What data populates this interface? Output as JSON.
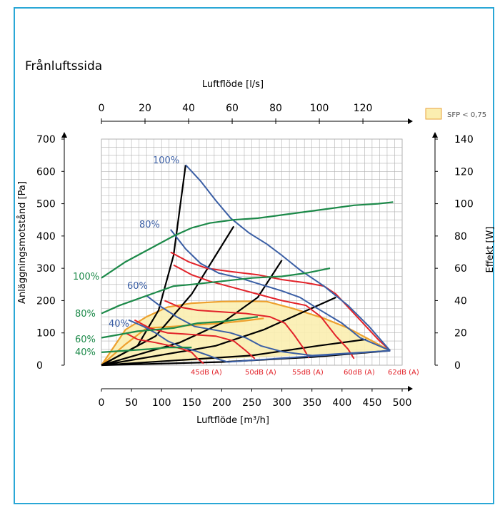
{
  "title": "Frånluftssida",
  "top_axis": {
    "label": "Luftflöde [l/s]",
    "ticks": [
      "0",
      "20",
      "40",
      "60",
      "80",
      "100",
      "120"
    ],
    "values": [
      0,
      20,
      40,
      60,
      80,
      100,
      120
    ],
    "max": 138
  },
  "bottom_axis": {
    "label": "Luftflöde [m³/h]",
    "ticks": [
      "0",
      "50",
      "100",
      "150",
      "200",
      "250",
      "300",
      "350",
      "400",
      "450",
      "500"
    ],
    "values": [
      0,
      50,
      100,
      150,
      200,
      250,
      300,
      350,
      400,
      450,
      500
    ]
  },
  "left_axis": {
    "label": "Anläggningsmotstånd [Pa]",
    "ticks": [
      "0",
      "100",
      "200",
      "300",
      "400",
      "500",
      "600",
      "700"
    ],
    "values": [
      0,
      100,
      200,
      300,
      400,
      500,
      600,
      700
    ]
  },
  "right_axis": {
    "label": "Effekt [W]",
    "ticks": [
      "0",
      "20",
      "40",
      "60",
      "80",
      "100",
      "120",
      "140"
    ],
    "values": [
      0,
      20,
      40,
      60,
      80,
      100,
      120,
      140
    ]
  },
  "legend": {
    "label": "SFP < 0,75",
    "color": "#fbeeb0",
    "border": "#e8a23a"
  },
  "colors": {
    "blue": "#3b5fa5",
    "green": "#1d8a4a",
    "red": "#e2232a",
    "black": "#000000",
    "orange": "#eda12f",
    "fill": "#fbeeb0",
    "frame": "#2aa7d6"
  },
  "labels": {
    "pressure": [
      "100%",
      "80%",
      "60%",
      "40%"
    ],
    "power": [
      "100%",
      "80%",
      "60%",
      "40%"
    ],
    "sound": [
      "45dB (A)",
      "50dB (A)",
      "55dB (A)",
      "60dB (A)",
      "62dB (A)"
    ]
  },
  "chart_data": {
    "type": "line",
    "x_unit": "m³/h",
    "xlim": [
      0,
      500
    ],
    "ylim": [
      0,
      700
    ],
    "y2lim": [
      0,
      140
    ],
    "pressure_curves": [
      {
        "name": "100%",
        "points": [
          [
            140,
            620
          ],
          [
            165,
            570
          ],
          [
            190,
            510
          ],
          [
            215,
            455
          ],
          [
            245,
            410
          ],
          [
            275,
            375
          ],
          [
            300,
            340
          ],
          [
            330,
            295
          ],
          [
            370,
            245
          ],
          [
            410,
            185
          ],
          [
            445,
            120
          ],
          [
            480,
            45
          ]
        ]
      },
      {
        "name": "80%",
        "points": [
          [
            115,
            420
          ],
          [
            140,
            360
          ],
          [
            165,
            315
          ],
          [
            195,
            285
          ],
          [
            230,
            270
          ],
          [
            265,
            250
          ],
          [
            300,
            230
          ],
          [
            330,
            210
          ],
          [
            360,
            175
          ],
          [
            400,
            130
          ],
          [
            430,
            85
          ],
          [
            480,
            45
          ]
        ]
      },
      {
        "name": "60%",
        "points": [
          [
            75,
            215
          ],
          [
            100,
            180
          ],
          [
            125,
            150
          ],
          [
            155,
            120
          ],
          [
            185,
            110
          ],
          [
            215,
            100
          ],
          [
            240,
            85
          ],
          [
            265,
            60
          ],
          [
            300,
            42
          ],
          [
            350,
            30
          ],
          [
            480,
            45
          ]
        ]
      },
      {
        "name": "40%",
        "points": [
          [
            45,
            140
          ],
          [
            70,
            120
          ],
          [
            90,
            100
          ],
          [
            110,
            75
          ],
          [
            135,
            55
          ],
          [
            155,
            45
          ],
          [
            175,
            32
          ],
          [
            195,
            18
          ],
          [
            210,
            10
          ],
          [
            480,
            45
          ]
        ]
      }
    ],
    "power_curves": [
      {
        "name": "100%",
        "points": [
          [
            0,
            54
          ],
          [
            40,
            64
          ],
          [
            80,
            72
          ],
          [
            120,
            80
          ],
          [
            150,
            85
          ],
          [
            180,
            88
          ],
          [
            220,
            90
          ],
          [
            260,
            91
          ],
          [
            300,
            93
          ],
          [
            340,
            95
          ],
          [
            380,
            97
          ],
          [
            420,
            99
          ],
          [
            460,
            100
          ],
          [
            485,
            101
          ]
        ]
      },
      {
        "name": "80%",
        "points": [
          [
            0,
            32
          ],
          [
            30,
            37
          ],
          [
            60,
            41
          ],
          [
            90,
            45
          ],
          [
            120,
            49
          ],
          [
            150,
            50
          ],
          [
            200,
            52
          ],
          [
            250,
            54
          ],
          [
            300,
            55
          ],
          [
            340,
            57
          ],
          [
            380,
            60
          ]
        ]
      },
      {
        "name": "60%",
        "points": [
          [
            0,
            17
          ],
          [
            30,
            19
          ],
          [
            60,
            21
          ],
          [
            90,
            22
          ],
          [
            120,
            23
          ],
          [
            160,
            26
          ],
          [
            200,
            27
          ],
          [
            240,
            29
          ],
          [
            260,
            30
          ]
        ]
      },
      {
        "name": "40%",
        "points": [
          [
            0,
            8
          ],
          [
            40,
            9
          ],
          [
            80,
            10
          ],
          [
            110,
            11
          ],
          [
            150,
            11
          ]
        ]
      }
    ],
    "sound_curves": [
      {
        "name": "62dB (A)",
        "points": [
          [
            115,
            350
          ],
          [
            145,
            320
          ],
          [
            175,
            300
          ],
          [
            215,
            290
          ],
          [
            260,
            280
          ],
          [
            300,
            265
          ],
          [
            340,
            255
          ],
          [
            370,
            245
          ],
          [
            390,
            220
          ],
          [
            410,
            180
          ],
          [
            435,
            130
          ],
          [
            460,
            80
          ],
          [
            480,
            45
          ]
        ]
      },
      {
        "name": "60dB (A)",
        "points": [
          [
            120,
            310
          ],
          [
            150,
            280
          ],
          [
            180,
            260
          ],
          [
            220,
            240
          ],
          [
            260,
            220
          ],
          [
            300,
            200
          ],
          [
            340,
            185
          ],
          [
            365,
            150
          ],
          [
            390,
            90
          ],
          [
            410,
            50
          ],
          [
            420,
            20
          ]
        ]
      },
      {
        "name": "55dB (A)",
        "points": [
          [
            105,
            200
          ],
          [
            130,
            180
          ],
          [
            160,
            170
          ],
          [
            200,
            165
          ],
          [
            240,
            160
          ],
          [
            280,
            150
          ],
          [
            305,
            130
          ],
          [
            320,
            95
          ],
          [
            335,
            55
          ],
          [
            345,
            22
          ]
        ]
      },
      {
        "name": "50dB (A)",
        "points": [
          [
            55,
            140
          ],
          [
            80,
            115
          ],
          [
            110,
            100
          ],
          [
            150,
            95
          ],
          [
            190,
            90
          ],
          [
            220,
            75
          ],
          [
            240,
            45
          ],
          [
            255,
            20
          ]
        ]
      },
      {
        "name": "45dB (A)",
        "points": [
          [
            40,
            100
          ],
          [
            60,
            80
          ],
          [
            90,
            70
          ],
          [
            115,
            60
          ],
          [
            135,
            50
          ],
          [
            150,
            40
          ],
          [
            160,
            20
          ],
          [
            170,
            5
          ]
        ]
      }
    ],
    "system_curves": [
      {
        "points": [
          [
            0,
            0
          ],
          [
            60,
            60
          ],
          [
            95,
            170
          ],
          [
            120,
            340
          ],
          [
            140,
            620
          ]
        ]
      },
      {
        "points": [
          [
            0,
            0
          ],
          [
            90,
            90
          ],
          [
            150,
            220
          ],
          [
            190,
            340
          ],
          [
            220,
            430
          ]
        ]
      },
      {
        "points": [
          [
            0,
            0
          ],
          [
            130,
            70
          ],
          [
            200,
            130
          ],
          [
            260,
            210
          ],
          [
            300,
            325
          ]
        ]
      },
      {
        "points": [
          [
            0,
            0
          ],
          [
            190,
            60
          ],
          [
            270,
            110
          ],
          [
            330,
            160
          ],
          [
            390,
            210
          ]
        ]
      },
      {
        "points": [
          [
            0,
            0
          ],
          [
            250,
            30
          ],
          [
            360,
            60
          ],
          [
            440,
            80
          ]
        ]
      },
      {
        "points": [
          [
            0,
            0
          ],
          [
            200,
            10
          ],
          [
            350,
            25
          ],
          [
            480,
            45
          ]
        ]
      }
    ],
    "sfp_area": {
      "label": "SFP < 0,75",
      "points": [
        [
          0,
          0
        ],
        [
          40,
          110
        ],
        [
          75,
          150
        ],
        [
          110,
          180
        ],
        [
          150,
          192
        ],
        [
          200,
          197
        ],
        [
          250,
          198
        ],
        [
          275,
          197
        ],
        [
          320,
          175
        ],
        [
          370,
          145
        ],
        [
          410,
          115
        ],
        [
          440,
          85
        ],
        [
          480,
          45
        ],
        [
          0,
          0
        ]
      ]
    },
    "sfp_upper_line": [
      [
        0,
        0
      ],
      [
        40,
        110
      ],
      [
        75,
        150
      ],
      [
        110,
        180
      ],
      [
        150,
        192
      ],
      [
        200,
        197
      ],
      [
        250,
        198
      ],
      [
        275,
        197
      ],
      [
        320,
        175
      ],
      [
        370,
        145
      ],
      [
        410,
        115
      ],
      [
        440,
        85
      ],
      [
        480,
        45
      ]
    ],
    "sfp_lower_line": [
      [
        0,
        0
      ],
      [
        40,
        65
      ],
      [
        75,
        115
      ],
      [
        120,
        120
      ],
      [
        160,
        125
      ],
      [
        200,
        130
      ],
      [
        240,
        138
      ],
      [
        270,
        145
      ]
    ]
  }
}
